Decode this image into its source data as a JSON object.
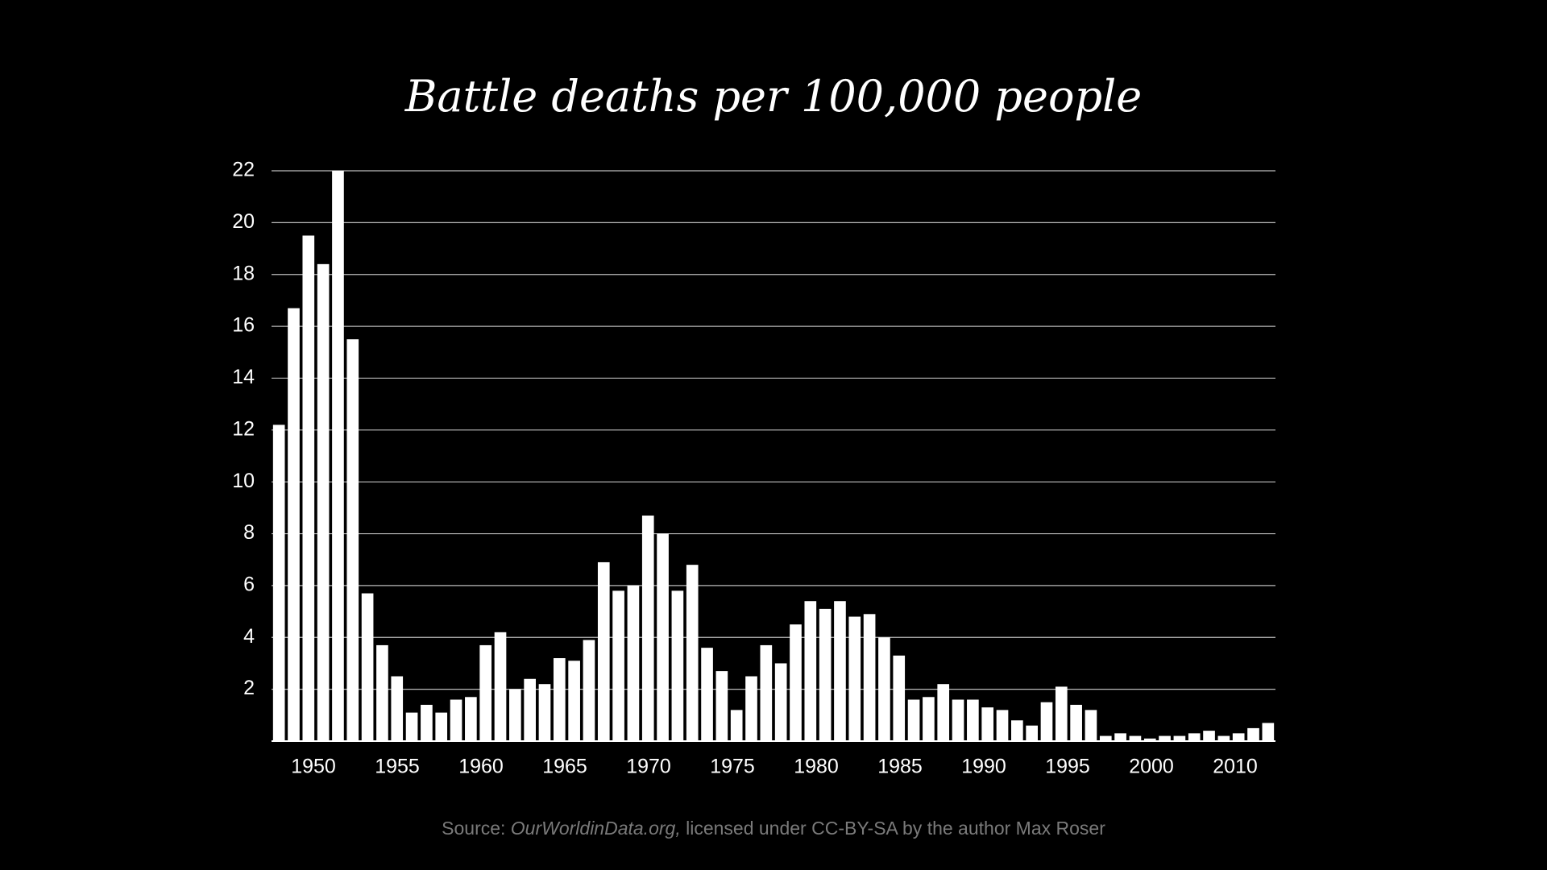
{
  "chart_data": {
    "type": "bar",
    "title": "Battle deaths per 100,000 people",
    "categories": [
      null,
      null,
      null,
      null,
      null,
      null,
      null,
      null,
      null,
      null,
      null,
      null,
      null,
      null,
      null,
      null,
      null,
      null,
      null,
      null,
      null,
      null,
      null,
      null,
      null,
      null,
      null,
      null,
      null,
      null,
      null,
      null,
      null,
      null,
      null,
      null,
      null,
      null,
      null,
      null,
      null,
      null,
      null,
      null,
      null,
      null,
      null,
      null,
      null,
      null,
      null,
      null,
      null,
      null,
      null,
      null,
      null,
      null,
      null,
      null,
      null,
      null,
      null,
      null,
      null,
      null,
      null,
      null
    ],
    "values": [
      12.2,
      16.7,
      19.5,
      18.4,
      22,
      15.5,
      5.7,
      3.7,
      2.5,
      1.1,
      1.4,
      1.1,
      1.6,
      1.7,
      3.7,
      4.2,
      2.0,
      2.4,
      2.2,
      3.2,
      3.1,
      3.9,
      6.9,
      5.8,
      6.0,
      8.7,
      8.0,
      5.8,
      6.8,
      3.6,
      2.7,
      1.2,
      2.5,
      3.7,
      3.0,
      4.5,
      5.4,
      5.1,
      5.4,
      4.8,
      4.9,
      4.0,
      3.3,
      1.6,
      1.7,
      2.2,
      1.6,
      1.6,
      1.3,
      1.2,
      0.8,
      0.6,
      1.5,
      2.1,
      1.4,
      1.2,
      0.2,
      0.3,
      0.2,
      0.1,
      0.2,
      0.2,
      0.3,
      0.4,
      0.2,
      0.3,
      0.5,
      0.7
    ],
    "x_labels": [
      "1950",
      "1955",
      "1960",
      "1965",
      "1970",
      "1975",
      "1980",
      "1985",
      "1990",
      "1995",
      "2000",
      "2010"
    ],
    "color": "#ffffff",
    "ylim": [
      0,
      22
    ],
    "yticks": [
      2,
      4,
      6,
      8,
      10,
      12,
      14,
      16,
      18,
      20,
      22
    ],
    "grid": true,
    "source": [
      "Source:",
      "OurWorldinData.org,",
      "licensed under CC-BY-SA by the author Max Roser"
    ]
  }
}
